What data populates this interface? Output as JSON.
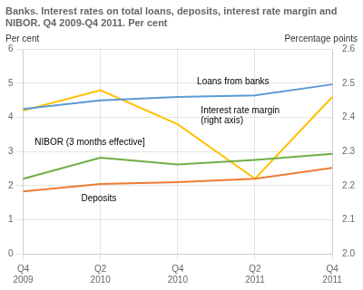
{
  "chart_data": {
    "type": "line",
    "title": "Banks. Interest rates on total loans, deposits, interest rate margin and\nNIBOR. Q4 2009-Q4 2011. Per cent",
    "categories": [
      "Q4\n2009",
      "Q2\n2010",
      "Q4\n2010",
      "Q2\n2011",
      "Q4\n2011"
    ],
    "series": [
      {
        "name": "Loans from banks",
        "color": "#5B9BD5",
        "values": [
          4.25,
          4.5,
          4.6,
          4.65,
          4.97
        ]
      },
      {
        "name": "NIBOR (3 months effective]",
        "color": "#70AD47",
        "values": [
          2.2,
          2.82,
          2.62,
          2.75,
          2.93
        ]
      },
      {
        "name": "Deposits",
        "color": "#ED7D31",
        "values": [
          1.83,
          2.05,
          2.1,
          2.2,
          2.52
        ]
      },
      {
        "name": "Interest rate margin\n(right axis)",
        "color": "#FFC000",
        "values": [
          2.42,
          2.48,
          2.38,
          2.22,
          2.46
        ],
        "axis": "y2"
      }
    ],
    "ylabel": "Per cent",
    "y2label": "Percentage points",
    "ylim": [
      0,
      6
    ],
    "yticks": [
      0,
      1,
      2,
      3,
      4,
      5,
      6
    ],
    "y2lim": [
      2.0,
      2.6
    ],
    "y2ticks": [
      {
        "value": 2.0,
        "label": "2.0"
      },
      2.1,
      2.2,
      2.3,
      2.4,
      2.5,
      2.6
    ],
    "grid": true
  }
}
